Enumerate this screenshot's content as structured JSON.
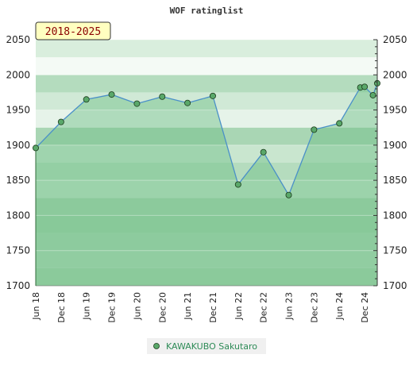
{
  "chart_data": {
    "type": "line",
    "title": "WOF ratinglist",
    "period_label": "2018-2025",
    "ylim": [
      1700,
      2050
    ],
    "y_ticks": [
      1700,
      1750,
      1800,
      1850,
      1900,
      1950,
      2000,
      2050
    ],
    "x_tick_labels": [
      "Jun 18",
      "Dec 18",
      "Jun 19",
      "Dec 19",
      "Jun 20",
      "Dec 20",
      "Jun 21",
      "Dec 21",
      "Jun 22",
      "Dec 22",
      "Jun 23",
      "Dec 23",
      "Jun 24",
      "Dec 24"
    ],
    "legend_position": "bottom",
    "grid": true,
    "series": [
      {
        "name": "KAWAKUBO Sakutaro",
        "color": "#4a90c8",
        "fill_color": "#6cbf84",
        "marker_color": "#5aa86a",
        "points": [
          {
            "x": "Jun 18",
            "y": 1896
          },
          {
            "x": "Dec 18",
            "y": 1933
          },
          {
            "x": "Jun 19",
            "y": 1965
          },
          {
            "x": "Dec 19",
            "y": 1972
          },
          {
            "x": "Jun 20",
            "y": 1959
          },
          {
            "x": "Dec 20",
            "y": 1969
          },
          {
            "x": "Jun 21",
            "y": 1960
          },
          {
            "x": "Dec 21",
            "y": 1970
          },
          {
            "x": "Jun 22",
            "y": 1844
          },
          {
            "x": "Dec 22",
            "y": 1890
          },
          {
            "x": "Jun 23",
            "y": 1829
          },
          {
            "x": "Dec 23",
            "y": 1922
          },
          {
            "x": "Jun 24",
            "y": 1931
          },
          {
            "x": "Nov 24",
            "y": 1982
          },
          {
            "x": "Dec 24",
            "y": 1983
          },
          {
            "x": "Jan 25",
            "y": 1971
          },
          {
            "x": "Feb 25",
            "y": 1988
          }
        ],
        "x_index": [
          0,
          1,
          2,
          3,
          4,
          5,
          6,
          7,
          8,
          9,
          10,
          11,
          12,
          12.83,
          13.0,
          13.33,
          13.5
        ]
      }
    ]
  }
}
